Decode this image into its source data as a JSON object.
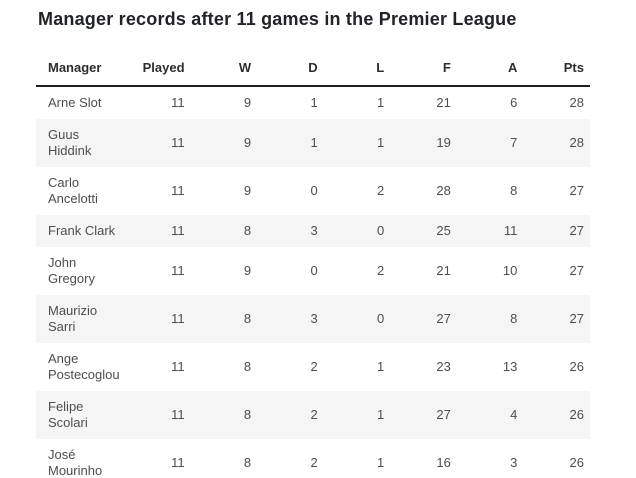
{
  "title": "Manager records after 11 games in the Premier League",
  "chart_data": {
    "type": "table",
    "title": "Manager records after 11 games in the Premier League",
    "columns": [
      "Manager",
      "Played",
      "W",
      "D",
      "L",
      "F",
      "A",
      "Pts"
    ],
    "rows": [
      {
        "manager": "Arne Slot",
        "manager_display": "Arne Slot",
        "stats": [
          11,
          9,
          1,
          1,
          21,
          6,
          28
        ]
      },
      {
        "manager": "Guus Hiddink",
        "manager_display": "Guus\nHiddink",
        "stats": [
          11,
          9,
          1,
          1,
          19,
          7,
          28
        ]
      },
      {
        "manager": "Carlo Ancelotti",
        "manager_display": "Carlo\nAncelotti",
        "stats": [
          11,
          9,
          0,
          2,
          28,
          8,
          27
        ]
      },
      {
        "manager": "Frank Clark",
        "manager_display": "Frank Clark",
        "stats": [
          11,
          8,
          3,
          0,
          25,
          11,
          27
        ]
      },
      {
        "manager": "John Gregory",
        "manager_display": "John\nGregory",
        "stats": [
          11,
          9,
          0,
          2,
          21,
          10,
          27
        ]
      },
      {
        "manager": "Maurizio Sarri",
        "manager_display": "Maurizio\nSarri",
        "stats": [
          11,
          8,
          3,
          0,
          27,
          8,
          27
        ]
      },
      {
        "manager": "Ange Postecoglou",
        "manager_display": "Ange\nPostecoglou",
        "stats": [
          11,
          8,
          2,
          1,
          23,
          13,
          26
        ]
      },
      {
        "manager": "Felipe Scolari",
        "manager_display": "Felipe\nScolari",
        "stats": [
          11,
          8,
          2,
          1,
          27,
          4,
          26
        ]
      },
      {
        "manager": "José Mourinho",
        "manager_display": "José\nMourinho",
        "stats": [
          11,
          8,
          2,
          1,
          16,
          3,
          26
        ]
      }
    ],
    "layout": {
      "alternating_row_shading": true,
      "numeric_columns_alignment": "right"
    }
  },
  "colors": {
    "page_background": "#ffffff",
    "title_text": "#20242a",
    "header_text": "#2d2d2d",
    "header_border": "#1f1f1f",
    "cell_text": "#4e4e4e",
    "row_alt_background": "#f5f5f5"
  }
}
